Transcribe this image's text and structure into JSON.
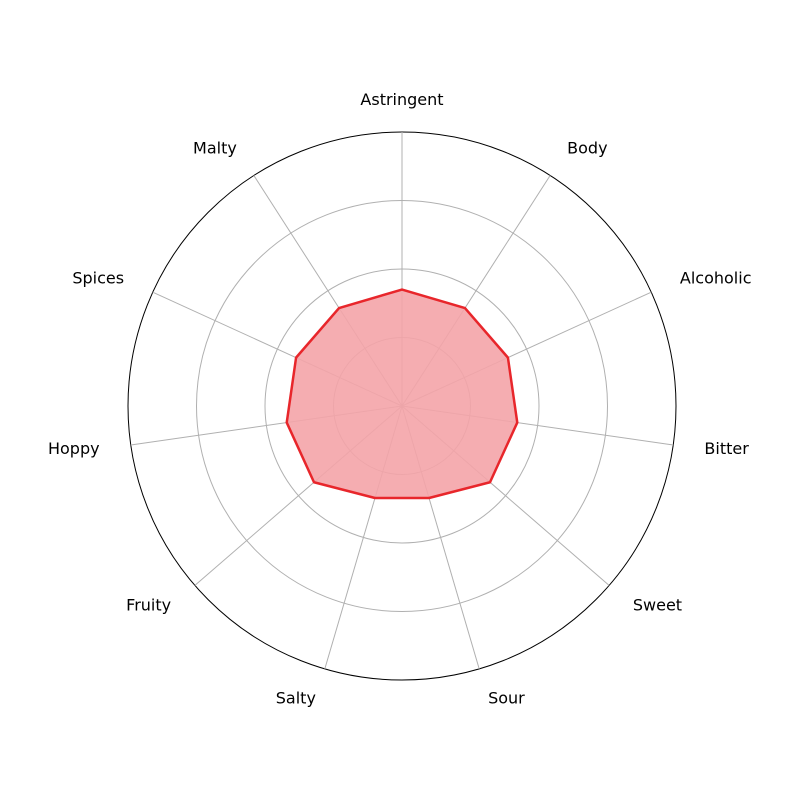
{
  "chart_data": {
    "type": "radar",
    "categories": [
      "Astringent",
      "Body",
      "Alcoholic",
      "Bitter",
      "Sweet",
      "Sour",
      "Salty",
      "Fruity",
      "Hoppy",
      "Spices",
      "Malty"
    ],
    "series": [
      {
        "values": [
          1.7,
          1.7,
          1.7,
          1.7,
          1.7,
          1.4,
          1.4,
          1.7,
          1.7,
          1.7,
          1.7
        ]
      }
    ],
    "rlim": [
      0,
      4
    ],
    "rgrid": [
      1,
      2,
      3,
      4
    ],
    "grid": true,
    "line_color": "#e8262b",
    "fill_color": "#f4a4a8",
    "grid_color": "#b0b0b0",
    "outline_color": "#000000"
  }
}
